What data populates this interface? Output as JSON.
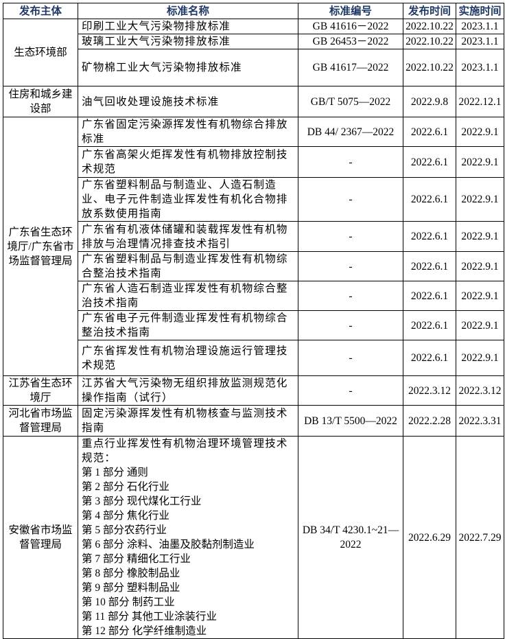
{
  "headers": [
    "发布主体",
    "标准名称",
    "标准编号",
    "发布时间",
    "实施时间"
  ],
  "groups": [
    {
      "issuer": "生态环境部",
      "rows": [
        {
          "name": "印刷工业大气污染物排放标准",
          "code": "GB 41616－2022",
          "publish": "2022.10.22",
          "effective": "2023.1.1"
        },
        {
          "name": "玻璃工业大气污染物排放标准",
          "code": "GB 26453－2022",
          "publish": "2022.10.22",
          "effective": "2023.1.1"
        },
        {
          "name": "矿物棉工业大气污染物排放标准",
          "code": "GB 41617—2022",
          "publish": "2022.10.22",
          "effective": "2023.1.1"
        }
      ]
    },
    {
      "issuer": "住房和城乡建设部",
      "rows": [
        {
          "name": "油气回收处理设施技术标准",
          "code": "GB/T 5075—2022",
          "publish": "2022.9.8",
          "effective": "2022.12.1"
        }
      ]
    },
    {
      "issuer": "广东省生态环境厅/广东省市场监督管理局",
      "rows": [
        {
          "name": "广东省固定污染源挥发性有机物综合排放标准",
          "code": "DB 44/ 2367—2022",
          "publish": "2022.6.1",
          "effective": "2022.9.1"
        },
        {
          "name": "广东省高架火炬挥发性有机物排放控制技术规范",
          "code": "-",
          "publish": "2022.6.1",
          "effective": "2022.9.1"
        },
        {
          "name": "广东省塑料制品与制造业、人造石制造业、电子元件制造业挥发性有机化合物排放系数使用指南",
          "code": "-",
          "publish": "2022.6.1",
          "effective": "2022.9.1"
        },
        {
          "name": "广东省有机液体储罐和装载挥发性有机物排放与治理情况排查技术指引",
          "code": "-",
          "publish": "2022.6.1",
          "effective": "2022.9.1"
        },
        {
          "name": "广东省塑料制品与制造业挥发性有机物综合整治技术指南",
          "code": "-",
          "publish": "2022.6.1",
          "effective": "2022.9.1"
        },
        {
          "name": "广东省人造石制造业挥发性有机物综合整治技术指南",
          "code": "-",
          "publish": "2022.6.1",
          "effective": "2022.9.1"
        },
        {
          "name": "广东省电子元件制造业挥发性有机物综合整治技术指南",
          "code": "-",
          "publish": "2022.6.1",
          "effective": "2022.9.1"
        },
        {
          "name": "广东省挥发性有机物治理设施运行管理技术规范",
          "code": "-",
          "publish": "2022.6.1",
          "effective": "2022.9.1"
        }
      ]
    },
    {
      "issuer": "江苏省生态环境厅",
      "rows": [
        {
          "name": "江苏省大气污染物无组织排放监测规范化操作指南（试行）",
          "code": "-",
          "publish": "2022.3.12",
          "effective": "2022.3.12"
        }
      ]
    },
    {
      "issuer": "河北省市场监督管理局",
      "rows": [
        {
          "name": "固定污染源挥发性有机物核查与监测技术指南",
          "code": "DB 13/T 5500—2022",
          "publish": "2022.2.28",
          "effective": "2022.3.31"
        }
      ]
    },
    {
      "issuer": "安徽省市场监督管理局",
      "rows": [
        {
          "name": "重点行业挥发性有机物治理环境管理技术规范：",
          "parts": [
            "第 1 部分  通则",
            "第 2 部分  石化行业",
            "第 3 部分  现代煤化工行业",
            "第 4 部分  焦化行业",
            "第 5 部分农药行业",
            "第 6 部分  涂料、油墨及胶黏剂制造业",
            "第 7 部分  精细化工行业",
            "第 8 部分  橡胶制品业",
            "第 9 部分  塑料制品业",
            "第 10 部分  制药工业",
            "第 11 部分  其他工业涂装行业",
            "第 12 部分  化学纤维制造业"
          ],
          "code": "DB 34/T 4230.1~21—2022",
          "publish": "2022.6.29",
          "effective": "2022.7.29"
        }
      ]
    }
  ]
}
